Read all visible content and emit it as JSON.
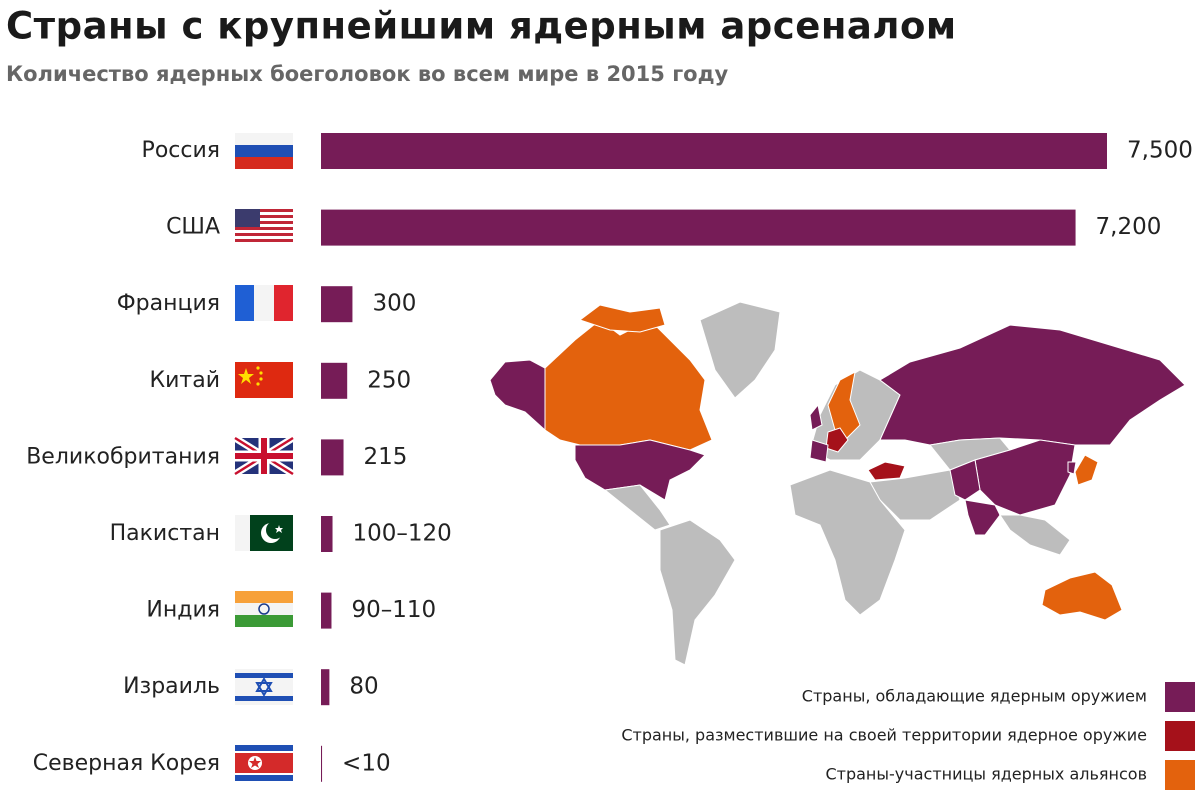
{
  "chart_data": {
    "type": "bar",
    "orientation": "horizontal",
    "title": "Страны с крупнейшим ядерным арсеналом",
    "subtitle": "Количество ядерных боеголовок во всем мире в 2015 году",
    "categories": [
      "Россия",
      "США",
      "Франция",
      "Китай",
      "Великобритания",
      "Пакистан",
      "Индия",
      "Израиль",
      "Северная Корея"
    ],
    "values": [
      7500,
      7200,
      300,
      250,
      215,
      110,
      100,
      80,
      10
    ],
    "value_labels": [
      "7,500",
      "7,200",
      "300",
      "250",
      "215",
      "100–120",
      "90–110",
      "80",
      "<10"
    ],
    "color": "#761c57",
    "map_legend": [
      {
        "name": "Страны, обладающие ядерным оружием",
        "color": "#761c57"
      },
      {
        "name": "Страны, разместившие на своей территории ядерное оружие",
        "color": "#a5111a"
      },
      {
        "name": "Страны-участницы ядерных альянсов",
        "color": "#e3620d"
      }
    ]
  }
}
